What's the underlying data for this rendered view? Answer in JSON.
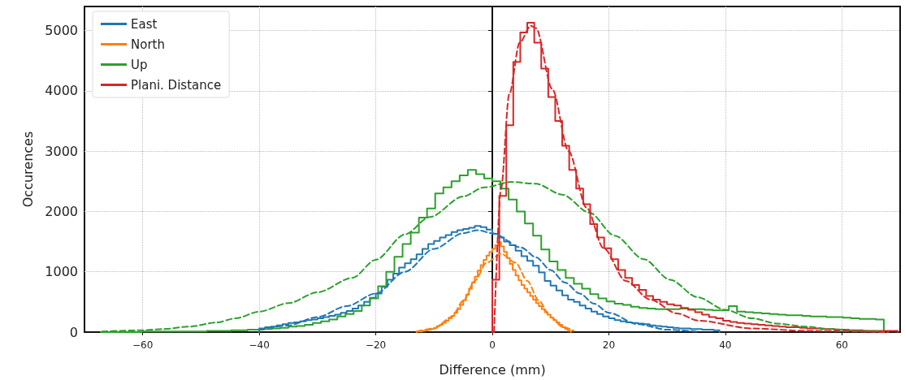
{
  "chart_data": {
    "type": "histogram",
    "xlabel": "Difference (mm)",
    "ylabel": "Occurences",
    "xlim": [
      -70,
      70
    ],
    "xticks": [
      {
        "value": -60,
        "label": "−60"
      },
      {
        "value": -40,
        "label": "−40"
      },
      {
        "value": -20,
        "label": "−20"
      },
      0,
      20,
      40,
      60
    ],
    "ylim": [
      0,
      5400
    ],
    "yticks": [
      0,
      1000,
      2000,
      3000,
      4000,
      5000
    ],
    "grid": true,
    "legend": "top left",
    "series": [
      {
        "name": "East",
        "color": "#1f77b4",
        "type": "histogram",
        "bins": [
          -40,
          -39,
          -38,
          -37,
          -36,
          -35,
          -34,
          -33,
          -32,
          -31,
          -30,
          -29,
          -28,
          -27,
          -26,
          -25,
          -24,
          -23,
          -22,
          -21,
          -20,
          -19,
          -18,
          -17,
          -16,
          -15,
          -14,
          -13,
          -12,
          -11,
          -10,
          -9,
          -8,
          -7,
          -6,
          -5,
          -4,
          -3,
          -2,
          -1,
          0,
          1,
          2,
          3,
          4,
          5,
          6,
          7,
          8,
          9,
          10,
          11,
          12,
          13,
          14,
          15,
          16,
          17,
          18,
          19,
          20,
          21,
          22,
          23,
          24,
          25,
          26,
          27,
          28,
          29,
          30,
          31,
          32,
          33,
          34,
          35,
          36,
          37,
          38,
          39
        ],
        "values": [
          60,
          80,
          90,
          110,
          130,
          150,
          160,
          180,
          200,
          210,
          230,
          250,
          270,
          290,
          320,
          350,
          390,
          440,
          500,
          570,
          640,
          750,
          870,
          970,
          1070,
          1140,
          1210,
          1290,
          1380,
          1460,
          1510,
          1570,
          1610,
          1660,
          1690,
          1710,
          1730,
          1760,
          1740,
          1700,
          1630,
          1570,
          1500,
          1440,
          1350,
          1260,
          1180,
          1100,
          990,
          850,
          770,
          690,
          610,
          540,
          500,
          440,
          390,
          340,
          300,
          260,
          230,
          200,
          180,
          160,
          150,
          140,
          130,
          110,
          100,
          90,
          80,
          70,
          60,
          60,
          50,
          50,
          40,
          40,
          30
        ]
      },
      {
        "name": "North",
        "color": "#ff7f0e",
        "type": "histogram",
        "bins": [
          -13,
          -12.5,
          -12,
          -11.5,
          -11,
          -10.5,
          -10,
          -9.5,
          -9,
          -8.5,
          -8,
          -7.5,
          -7,
          -6.5,
          -6,
          -5.5,
          -5,
          -4.5,
          -4,
          -3.5,
          -3,
          -2.5,
          -2,
          -1.5,
          -1,
          -0.5,
          0,
          0.5,
          1,
          1.5,
          2,
          2.5,
          3,
          3.5,
          4,
          4.5,
          5,
          5.5,
          6,
          6.5,
          7,
          7.5,
          8,
          8.5,
          9,
          9.5,
          10,
          10.5,
          11,
          11.5,
          12,
          12.5,
          13,
          13.5
        ],
        "values": [
          10,
          10,
          20,
          30,
          40,
          50,
          70,
          100,
          120,
          150,
          190,
          230,
          270,
          320,
          380,
          450,
          530,
          620,
          720,
          820,
          920,
          1020,
          1110,
          1200,
          1270,
          1330,
          1380,
          1440,
          1490,
          1420,
          1330,
          1230,
          1130,
          1030,
          940,
          860,
          780,
          720,
          660,
          600,
          540,
          480,
          430,
          380,
          330,
          290,
          240,
          200,
          160,
          120,
          80,
          50,
          20
        ]
      },
      {
        "name": "Up",
        "color": "#2ca02c",
        "type": "histogram",
        "bins": [
          -67.2,
          -65.8,
          -64.4,
          -63.0,
          -61.6,
          -60.2,
          -58.8,
          -57.4,
          -56.0,
          -54.6,
          -53.2,
          -51.8,
          -50.4,
          -49.0,
          -47.6,
          -46.2,
          -44.8,
          -43.4,
          -42.0,
          -40.6,
          -39.2,
          -37.8,
          -36.4,
          -35.0,
          -33.6,
          -32.2,
          -30.8,
          -29.4,
          -28.0,
          -26.6,
          -25.2,
          -23.8,
          -22.4,
          -21.0,
          -19.6,
          -18.2,
          -16.8,
          -15.4,
          -14.0,
          -12.6,
          -11.2,
          -9.8,
          -8.4,
          -7.0,
          -5.6,
          -4.2,
          -2.8,
          -1.4,
          0,
          1.4,
          2.8,
          4.2,
          5.6,
          7.0,
          8.4,
          9.8,
          11.2,
          12.6,
          14.0,
          15.4,
          16.8,
          18.2,
          19.6,
          21.0,
          22.4,
          23.8,
          25.2,
          26.6,
          28.0,
          29.4,
          30.8,
          32.2,
          33.6,
          35.0,
          36.4,
          37.8,
          39.2,
          40.6,
          42.0,
          43.4,
          44.8,
          46.2,
          47.6,
          49.0,
          50.4,
          51.8,
          53.2,
          54.6,
          56.0,
          57.4,
          58.8,
          60.2,
          61.6,
          63.0,
          64.4,
          65.8,
          67.2
        ],
        "values": [
          0,
          0,
          0,
          0,
          0,
          10,
          10,
          10,
          10,
          10,
          10,
          10,
          10,
          20,
          20,
          20,
          30,
          30,
          40,
          40,
          50,
          60,
          70,
          90,
          100,
          120,
          150,
          180,
          210,
          260,
          300,
          350,
          440,
          560,
          760,
          1000,
          1250,
          1460,
          1650,
          1900,
          2050,
          2300,
          2400,
          2500,
          2600,
          2690,
          2620,
          2550,
          2500,
          2380,
          2200,
          2000,
          1800,
          1600,
          1370,
          1170,
          1030,
          900,
          800,
          720,
          630,
          560,
          510,
          470,
          450,
          420,
          400,
          390,
          380,
          380,
          380,
          390,
          380,
          380,
          370,
          360,
          360,
          430,
          340,
          330,
          320,
          310,
          300,
          290,
          280,
          280,
          270,
          260,
          260,
          250,
          250,
          240,
          230,
          220,
          220,
          210
        ]
      },
      {
        "name": "Plani. Distance",
        "color": "#d62728",
        "type": "histogram",
        "bins": [
          0,
          1.2,
          2.4,
          3.6,
          4.8,
          6.0,
          7.2,
          8.4,
          9.6,
          10.8,
          12.0,
          13.2,
          14.4,
          15.6,
          16.8,
          18.0,
          19.2,
          20.4,
          21.6,
          22.8,
          24.0,
          25.2,
          26.4,
          27.6,
          28.8,
          30.0,
          31.2,
          32.4,
          33.6,
          34.8,
          36.0,
          37.2,
          38.4,
          39.6,
          40.8,
          42.0,
          43.2,
          44.4,
          45.6,
          46.8,
          48.0,
          49.2,
          50.4,
          51.6,
          52.8,
          54.0,
          55.2,
          56.4,
          57.6,
          58.8,
          60.0,
          61.2,
          62.4,
          63.6,
          64.8,
          66.0,
          67.2,
          68.4,
          69.6
        ],
        "values": [
          870,
          2260,
          3430,
          4480,
          4970,
          5130,
          4800,
          4370,
          3900,
          3500,
          3090,
          2690,
          2380,
          2120,
          1790,
          1570,
          1390,
          1210,
          1030,
          900,
          780,
          700,
          600,
          540,
          500,
          460,
          440,
          400,
          370,
          330,
          290,
          250,
          230,
          190,
          170,
          150,
          140,
          130,
          120,
          110,
          100,
          90,
          80,
          80,
          70,
          60,
          60,
          50,
          50,
          40,
          40,
          30,
          30,
          20,
          20,
          20,
          20,
          20
        ]
      },
      {
        "type": "line",
        "color": "#2077b5",
        "line_style": "dashed",
        "x": [
          -40,
          -35,
          -30,
          -25,
          -20,
          -15,
          -10,
          -5,
          -2.5,
          0,
          5,
          7.5,
          10,
          12.5,
          15,
          17.5,
          20,
          25,
          30,
          35
        ],
        "values": [
          40,
          110,
          250,
          430,
          640,
          1000,
          1380,
          1640,
          1690,
          1640,
          1400,
          1240,
          1030,
          820,
          640,
          470,
          320,
          130,
          40,
          10
        ]
      },
      {
        "type": "line",
        "color": "#fe800f",
        "line_style": "dashed",
        "x": [
          -13,
          -10,
          -7,
          -5,
          -3,
          -1,
          1.5,
          4,
          6,
          8,
          10,
          12,
          14
        ],
        "values": [
          10,
          60,
          250,
          520,
          850,
          1150,
          1300,
          1150,
          850,
          520,
          250,
          90,
          20
        ]
      },
      {
        "type": "line",
        "color": "#2ca02c",
        "line_style": "dashed",
        "x": [
          -67,
          -60,
          -56.6,
          -52,
          -47.3,
          -44,
          -40,
          -35,
          -30,
          -24,
          -20,
          -15,
          -10.7,
          -5,
          -1.4,
          3.3,
          7.5,
          12,
          16.7,
          21,
          26,
          30.5,
          35.2,
          40,
          44.5,
          49,
          53.8,
          58,
          63,
          67
        ],
        "values": [
          10,
          30,
          50,
          90,
          160,
          230,
          340,
          480,
          660,
          900,
          1200,
          1620,
          1910,
          2250,
          2400,
          2490,
          2460,
          2280,
          1980,
          1600,
          1210,
          870,
          580,
          370,
          230,
          140,
          90,
          50,
          20,
          10
        ]
      },
      {
        "type": "line",
        "color": "#d52829",
        "line_style": "dashed",
        "x": [
          0.3,
          1.5,
          2.9,
          4.7,
          6.6,
          7.5,
          10.3,
          13.1,
          16.2,
          19.1,
          22.9,
          27.1,
          31.7,
          35.4,
          44.6,
          53.9,
          68
        ],
        "values": [
          0,
          2380,
          3940,
          4800,
          5080,
          5040,
          4030,
          3000,
          2060,
          1390,
          850,
          540,
          310,
          190,
          60,
          20,
          0
        ]
      }
    ]
  }
}
